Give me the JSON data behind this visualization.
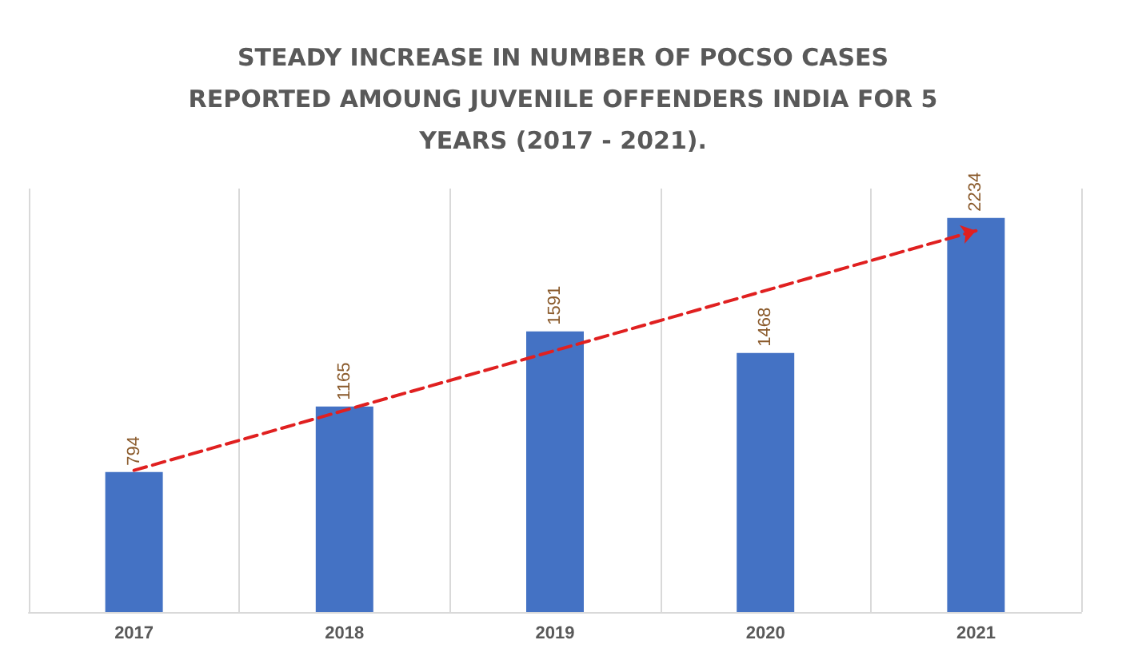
{
  "chart_data": {
    "type": "bar",
    "title": "STEADY INCREASE IN NUMBER OF POCSO CASES\nREPORTED AMOUNG JUVENILE OFFENDERS INDIA FOR 5\nYEARS (2017 - 2021).",
    "categories": [
      "2017",
      "2018",
      "2019",
      "2020",
      "2021"
    ],
    "grid": "x",
    "series": [
      {
        "color": "#4472c4",
        "values": [
          794,
          1165,
          1591,
          1468,
          2234
        ],
        "value_labels": [
          "794",
          "1165",
          "1591",
          "1468",
          "2234"
        ]
      },
      {
        "type": "line",
        "color": "#e02020",
        "values": [
          803,
          1143,
          1482,
          1822,
          2161
        ],
        "line_style": "dashed"
      }
    ]
  }
}
